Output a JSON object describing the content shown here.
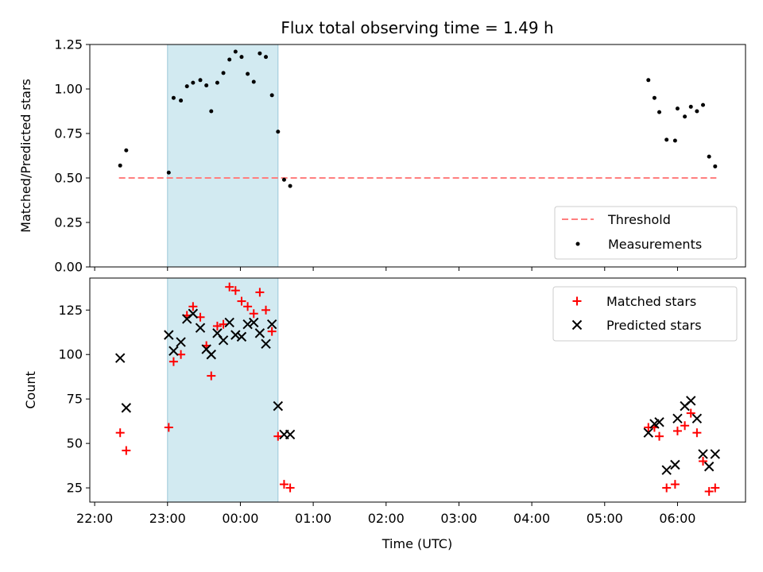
{
  "chart_data": [
    {
      "type": "scatter",
      "title": "Flux total observing time = 1.49 h",
      "ylabel": "Matched/Predicted stars",
      "xlabel": "",
      "xlim": [
        "21:56",
        "06:56"
      ],
      "ylim": [
        0,
        1.25
      ],
      "yticks": [
        "0.00",
        "0.25",
        "0.50",
        "0.75",
        "1.00",
        "1.25"
      ],
      "grid": false,
      "legend_position": "lower-right",
      "shaded_interval": [
        "23:00",
        "00:31"
      ],
      "threshold": {
        "name": "Threshold",
        "value": 0.5,
        "x_range": [
          "22:20",
          "06:32"
        ],
        "color": "#ff7f7f",
        "style": "dashed"
      },
      "series": [
        {
          "name": "Measurements",
          "color": "#000000",
          "marker": "dot",
          "points": [
            [
              "22:21",
              0.57
            ],
            [
              "22:26",
              0.655
            ],
            [
              "23:01",
              0.53
            ],
            [
              "23:05",
              0.95
            ],
            [
              "23:11",
              0.935
            ],
            [
              "23:16",
              1.015
            ],
            [
              "23:21",
              1.035
            ],
            [
              "23:27",
              1.05
            ],
            [
              "23:32",
              1.02
            ],
            [
              "23:36",
              0.875
            ],
            [
              "23:41",
              1.035
            ],
            [
              "23:46",
              1.09
            ],
            [
              "23:51",
              1.165
            ],
            [
              "23:56",
              1.21
            ],
            [
              "00:01",
              1.18
            ],
            [
              "00:06",
              1.085
            ],
            [
              "00:11",
              1.04
            ],
            [
              "00:16",
              1.2
            ],
            [
              "00:21",
              1.18
            ],
            [
              "00:26",
              0.965
            ],
            [
              "00:31",
              0.76
            ],
            [
              "00:36",
              0.49
            ],
            [
              "00:41",
              0.455
            ],
            [
              "05:36",
              1.05
            ],
            [
              "05:41",
              0.95
            ],
            [
              "05:45",
              0.87
            ],
            [
              "05:51",
              0.715
            ],
            [
              "05:58",
              0.71
            ],
            [
              "06:00",
              0.89
            ],
            [
              "06:06",
              0.845
            ],
            [
              "06:11",
              0.9
            ],
            [
              "06:16",
              0.875
            ],
            [
              "06:21",
              0.91
            ],
            [
              "06:26",
              0.62
            ],
            [
              "06:31",
              0.565
            ]
          ]
        }
      ]
    },
    {
      "type": "scatter",
      "title": "",
      "ylabel": "Count",
      "xlabel": "Time (UTC)",
      "xlim": [
        "21:56",
        "06:56"
      ],
      "ylim": [
        17,
        143
      ],
      "xticks": [
        "22:00",
        "23:00",
        "00:00",
        "01:00",
        "02:00",
        "03:00",
        "04:00",
        "05:00",
        "06:00"
      ],
      "yticks": [
        "25",
        "50",
        "75",
        "100",
        "125"
      ],
      "grid": false,
      "legend_position": "top-right",
      "shaded_interval": [
        "23:00",
        "00:31"
      ],
      "series": [
        {
          "name": "Matched stars",
          "color": "#ff0000",
          "marker": "plus",
          "points": [
            [
              "22:21",
              56
            ],
            [
              "22:26",
              46
            ],
            [
              "23:01",
              59
            ],
            [
              "23:05",
              96
            ],
            [
              "23:11",
              100
            ],
            [
              "23:16",
              122
            ],
            [
              "23:21",
              127
            ],
            [
              "23:27",
              121
            ],
            [
              "23:32",
              105
            ],
            [
              "23:36",
              88
            ],
            [
              "23:41",
              116
            ],
            [
              "23:46",
              117
            ],
            [
              "23:51",
              138
            ],
            [
              "23:56",
              136
            ],
            [
              "00:01",
              130
            ],
            [
              "00:06",
              127
            ],
            [
              "00:11",
              123
            ],
            [
              "00:16",
              135
            ],
            [
              "00:21",
              125
            ],
            [
              "00:26",
              113
            ],
            [
              "00:31",
              54
            ],
            [
              "00:36",
              27
            ],
            [
              "00:41",
              25
            ],
            [
              "05:36",
              59
            ],
            [
              "05:41",
              59
            ],
            [
              "05:45",
              54
            ],
            [
              "05:51",
              25
            ],
            [
              "05:58",
              27
            ],
            [
              "06:00",
              57
            ],
            [
              "06:06",
              60
            ],
            [
              "06:11",
              67
            ],
            [
              "06:16",
              56
            ],
            [
              "06:21",
              40
            ],
            [
              "06:26",
              23
            ],
            [
              "06:31",
              25
            ]
          ]
        },
        {
          "name": "Predicted stars",
          "color": "#000000",
          "marker": "x",
          "points": [
            [
              "22:21",
              98
            ],
            [
              "22:26",
              70
            ],
            [
              "23:01",
              111
            ],
            [
              "23:05",
              102
            ],
            [
              "23:11",
              107
            ],
            [
              "23:16",
              120
            ],
            [
              "23:21",
              123
            ],
            [
              "23:27",
              115
            ],
            [
              "23:32",
              103
            ],
            [
              "23:36",
              100
            ],
            [
              "23:41",
              112
            ],
            [
              "23:46",
              108
            ],
            [
              "23:51",
              118
            ],
            [
              "23:56",
              111
            ],
            [
              "00:01",
              110
            ],
            [
              "00:06",
              117
            ],
            [
              "00:11",
              118
            ],
            [
              "00:16",
              112
            ],
            [
              "00:21",
              106
            ],
            [
              "00:26",
              117
            ],
            [
              "00:31",
              71
            ],
            [
              "00:36",
              55
            ],
            [
              "00:41",
              55
            ],
            [
              "05:36",
              56
            ],
            [
              "05:41",
              61
            ],
            [
              "05:45",
              62
            ],
            [
              "05:51",
              35
            ],
            [
              "05:58",
              38
            ],
            [
              "06:00",
              64
            ],
            [
              "06:06",
              71
            ],
            [
              "06:11",
              74
            ],
            [
              "06:16",
              64
            ],
            [
              "06:21",
              44
            ],
            [
              "06:26",
              37
            ],
            [
              "06:31",
              44
            ]
          ]
        }
      ]
    }
  ]
}
